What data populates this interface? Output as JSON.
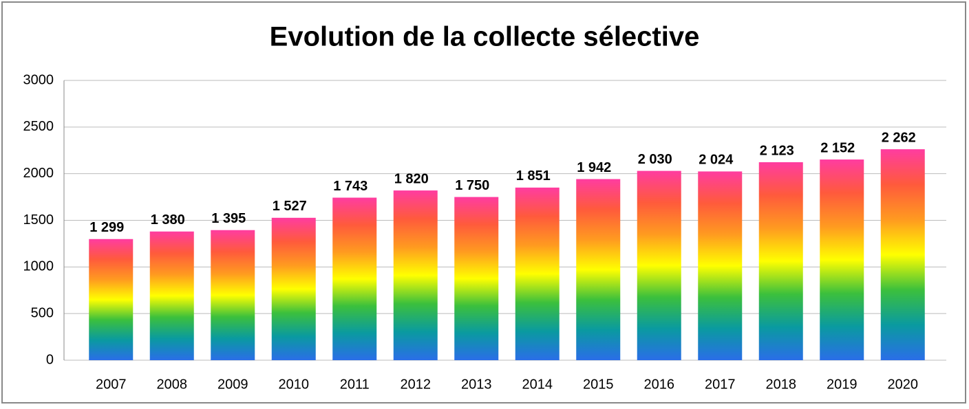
{
  "chart_data": {
    "type": "bar",
    "title": "Evolution de la collecte sélective",
    "categories": [
      "2007",
      "2008",
      "2009",
      "2010",
      "2011",
      "2012",
      "2013",
      "2014",
      "2015",
      "2016",
      "2017",
      "2018",
      "2019",
      "2020"
    ],
    "values": [
      1299,
      1380,
      1395,
      1527,
      1743,
      1820,
      1750,
      1851,
      1942,
      2030,
      2024,
      2123,
      2152,
      2262
    ],
    "value_labels": [
      "1 299",
      "1 380",
      "1 395",
      "1 527",
      "1 743",
      "1 820",
      "1 750",
      "1 851",
      "1 942",
      "2 030",
      "2 024",
      "2 123",
      "2 152",
      "2 262"
    ],
    "colors": [
      "#2a6ee8",
      "#0a9aa0",
      "#3cc03c",
      "#ffff00",
      "#ff9a20",
      "#ff5a3c",
      "#ff3ca0"
    ],
    "ylim": [
      0,
      3000
    ],
    "yticks": [
      0,
      500,
      1000,
      1500,
      2000,
      2500,
      3000
    ],
    "grid": true
  }
}
